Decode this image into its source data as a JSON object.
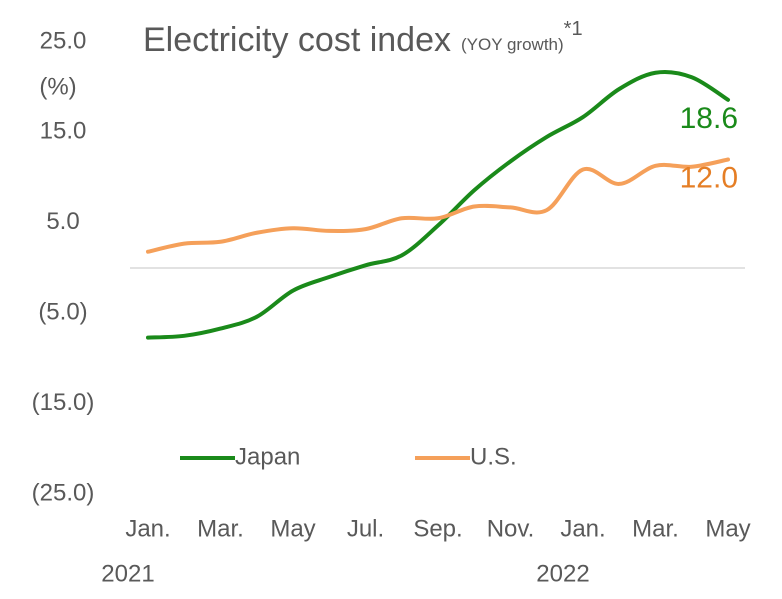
{
  "chart_data": {
    "type": "line",
    "title": "Electricity cost index",
    "subtitle": "(YOY growth)",
    "note": "*1",
    "y_unit": "(%)",
    "categories": [
      "Jan.",
      null,
      "Mar.",
      null,
      "May",
      null,
      "Jul.",
      null,
      "Sep.",
      null,
      "Nov.",
      null,
      "Jan.",
      null,
      "Mar.",
      null,
      "May"
    ],
    "year_labels": [
      {
        "index": 0,
        "label": "2021"
      },
      {
        "index": 12,
        "label": "2022"
      }
    ],
    "series": [
      {
        "name": "Japan",
        "color": "#1a8a1a",
        "label_color": "#1a8a1a",
        "values": [
          -7.7,
          -7.5,
          -6.7,
          -5.4,
          -2.5,
          -1.0,
          0.3,
          1.4,
          4.7,
          8.6,
          11.8,
          14.5,
          16.7,
          19.8,
          21.6,
          21.1,
          18.6
        ],
        "value_labels": [
          null,
          null,
          null,
          null,
          null,
          null,
          null,
          null,
          null,
          null,
          null,
          null,
          null,
          null,
          null,
          null,
          "18.6"
        ]
      },
      {
        "name": "U.S.",
        "color": "#f5a05a",
        "label_color": "#e57e25",
        "values": [
          1.8,
          2.7,
          2.9,
          3.9,
          4.4,
          4.1,
          4.3,
          5.5,
          5.5,
          6.8,
          6.7,
          6.4,
          10.9,
          9.3,
          11.3,
          11.2,
          12.0
        ],
        "value_labels": [
          null,
          null,
          null,
          null,
          null,
          null,
          null,
          null,
          null,
          null,
          null,
          null,
          null,
          null,
          null,
          null,
          "12.0"
        ]
      }
    ],
    "ylim": [
      -25,
      25
    ],
    "yticks": [
      {
        "value": 25,
        "label": "25.0"
      },
      {
        "value": 15,
        "label": "15.0"
      },
      {
        "value": 5,
        "label": "5.0"
      },
      {
        "value": -5,
        "label": "(5.0)"
      },
      {
        "value": -15,
        "label": "(15.0)"
      },
      {
        "value": -25,
        "label": "(25.0)"
      }
    ],
    "grid": false
  }
}
